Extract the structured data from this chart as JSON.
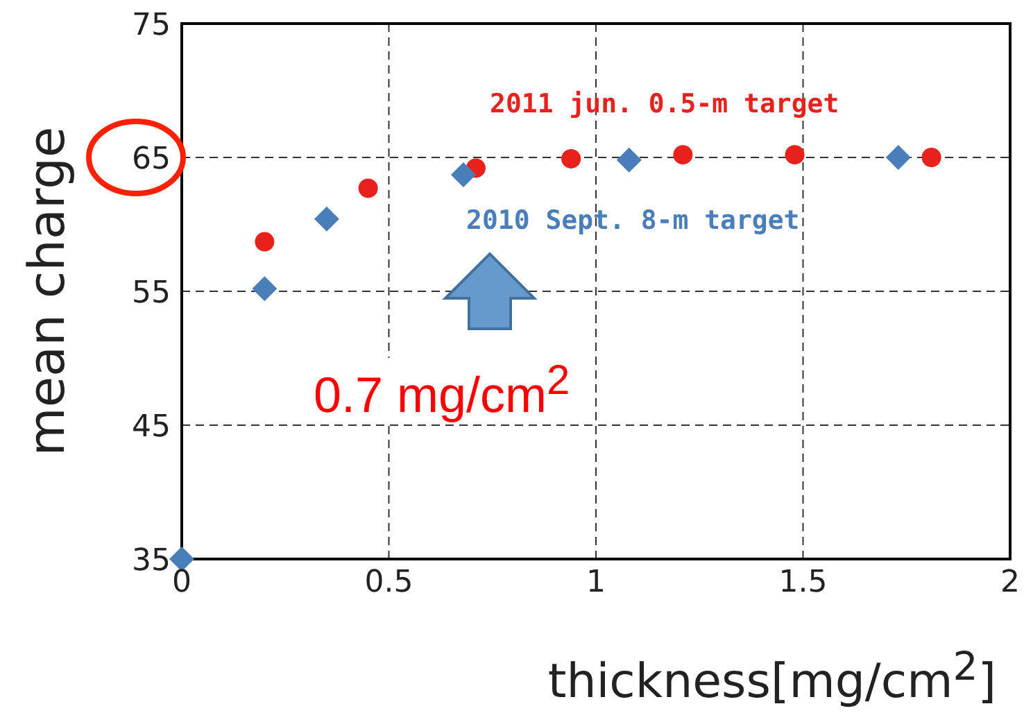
{
  "chart_data": {
    "type": "scatter",
    "xlabel": "thickness[mg/cm$^{2}$]",
    "ylabel": "mean charge",
    "xlim": [
      0,
      2
    ],
    "xticks": [
      0,
      0.5,
      1,
      1.5,
      2
    ],
    "ylim": [
      35,
      75
    ],
    "yticks": [
      35,
      45,
      55,
      65,
      75
    ],
    "grid": true,
    "line_style": "dashed",
    "series": [
      {
        "name": "2011 jun. 0.5-m target",
        "color": "#e8211c",
        "marker": "circle",
        "x": [
          0.2,
          0.45,
          0.71,
          0.94,
          1.21,
          1.48,
          1.81
        ],
        "values": [
          58.7,
          62.7,
          64.2,
          64.9,
          65.2,
          65.2,
          65
        ]
      },
      {
        "name": "2010 Sept. 8-m target",
        "color": "#4a7ebb",
        "marker": "diamond",
        "x": [
          0,
          0.2,
          0.35,
          0.68,
          1.08,
          1.73
        ],
        "values": [
          35,
          55.2,
          60.4,
          63.7,
          64.8,
          65
        ]
      }
    ],
    "annotations": [
      "0.7 mg/cm$^{2}$"
    ]
  }
}
